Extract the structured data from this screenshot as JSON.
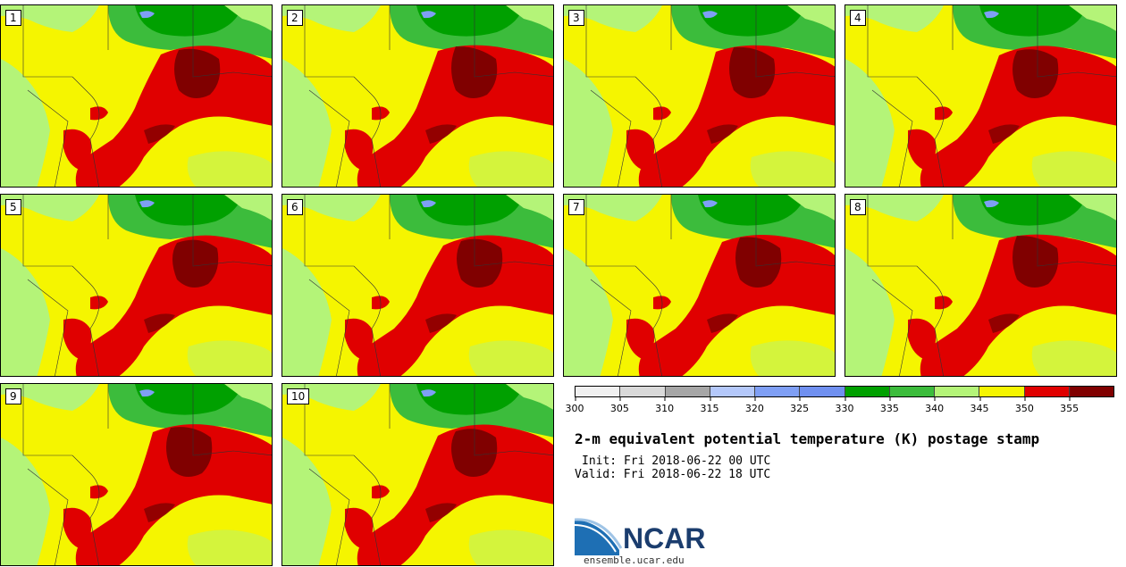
{
  "panels": [
    {
      "label": "1"
    },
    {
      "label": "2"
    },
    {
      "label": "3"
    },
    {
      "label": "4"
    },
    {
      "label": "5"
    },
    {
      "label": "6"
    },
    {
      "label": "7"
    },
    {
      "label": "8"
    },
    {
      "label": "9"
    },
    {
      "label": "10"
    }
  ],
  "colorbar": {
    "colors": [
      "#f0f0f0",
      "#d9d9d9",
      "#a6a6a6",
      "#b4c8fa",
      "#7f9ff5",
      "#7090f0",
      "#00a000",
      "#3cbc3c",
      "#b4f478",
      "#f5f500",
      "#e00000",
      "#800000"
    ],
    "ticks": [
      "300",
      "305",
      "310",
      "315",
      "320",
      "325",
      "330",
      "335",
      "340",
      "345",
      "350",
      "355"
    ]
  },
  "title": "2-m equivalent potential temperature (K) postage stamp",
  "init": "Init: Fri 2018-06-22 00 UTC",
  "valid": "Valid: Fri 2018-06-22 18 UTC",
  "logo": {
    "text": "NCAR",
    "color": "#1b3d6e"
  },
  "site": "ensemble.ucar.edu",
  "map_colors": {
    "dark_green": "#00a000",
    "green": "#3cbc3c",
    "light_green": "#b4f478",
    "yellow": "#f5f500",
    "red": "#e00000",
    "maroon": "#800000",
    "blue": "#7f9ff5"
  }
}
